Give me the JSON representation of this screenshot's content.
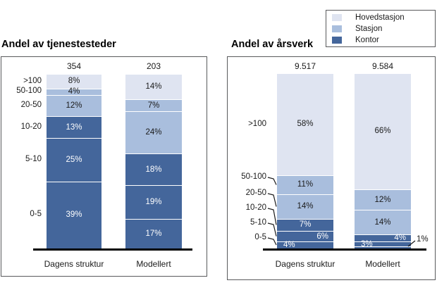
{
  "legend": {
    "items": [
      {
        "label": "Hovedstasjon",
        "color": "#dfe4f1",
        "text_color": "#1a1a1a"
      },
      {
        "label": "Stasjon",
        "color": "#a9bedd",
        "text_color": "#1a1a1a"
      },
      {
        "label": "Kontor",
        "color": "#44669b",
        "text_color": "#ffffff"
      }
    ]
  },
  "chart_data": [
    {
      "type": "bar",
      "stacked": true,
      "normalized_percent": true,
      "title": "Andel av tjenestesteder",
      "categories": [
        ">100",
        "50-100",
        "20-50",
        "10-20",
        "5-10",
        "0-5"
      ],
      "category_series": [
        "Hovedstasjon",
        "Stasjon",
        "Stasjon",
        "Kontor",
        "Kontor",
        "Kontor"
      ],
      "groups": [
        {
          "label": "Dagens struktur",
          "total": "354",
          "values": [
            8,
            4,
            12,
            13,
            25,
            39
          ],
          "segment_labels": [
            "8%",
            "4%",
            "12%",
            "13%",
            "25%",
            "39%"
          ],
          "label_align": [
            "center",
            "center",
            "center",
            "center",
            "center",
            "center"
          ]
        },
        {
          "label": "Modellert",
          "total": "203",
          "values": [
            14,
            7,
            24,
            18,
            19,
            17
          ],
          "segment_labels": [
            "14%",
            "7%",
            "24%",
            "18%",
            "19%",
            "17%"
          ],
          "label_align": [
            "center",
            "center",
            "center",
            "center",
            "center",
            "center"
          ]
        }
      ]
    },
    {
      "type": "bar",
      "stacked": true,
      "normalized_percent": true,
      "title": "Andel av årsverk",
      "categories": [
        ">100",
        "50-100",
        "20-50",
        "10-20",
        "5-10",
        "0-5"
      ],
      "category_series": [
        "Hovedstasjon",
        "Stasjon",
        "Stasjon",
        "Kontor",
        "Kontor",
        "Kontor"
      ],
      "groups": [
        {
          "label": "Dagens struktur",
          "total": "9.517",
          "values": [
            58,
            11,
            14,
            7,
            6,
            4
          ],
          "segment_labels": [
            "58%",
            "11%",
            "14%",
            "7%",
            "6%",
            "4%"
          ],
          "label_align": [
            "center",
            "center",
            "center",
            "center",
            "right",
            "left"
          ]
        },
        {
          "label": "Modellert",
          "total": "9.584",
          "values": [
            66,
            12,
            14,
            4,
            3,
            1
          ],
          "segment_labels": [
            "66%",
            "12%",
            "14%",
            "4%",
            "3%",
            "1%"
          ],
          "label_align": [
            "center",
            "center",
            "center",
            "right",
            "left",
            "outside"
          ]
        }
      ]
    }
  ]
}
